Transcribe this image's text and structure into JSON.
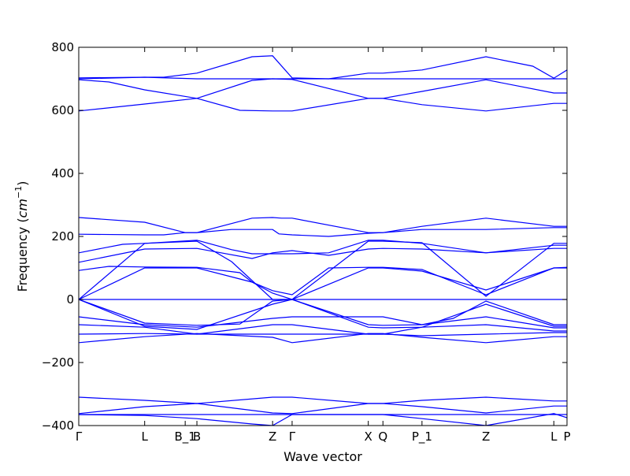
{
  "chart_data": {
    "type": "line",
    "title": "",
    "xlabel": "Wave vector",
    "ylabel": "Frequency",
    "ylabel_unit": "cm",
    "ylabel_unit_exp": "−1",
    "ylim": [
      -400,
      800
    ],
    "yticks": [
      {
        "value": 800,
        "label": "800"
      },
      {
        "value": 600,
        "label": "600"
      },
      {
        "value": 400,
        "label": "400"
      },
      {
        "value": 200,
        "label": "200"
      },
      {
        "value": 0,
        "label": "0"
      },
      {
        "value": -200,
        "label": "−200"
      },
      {
        "value": -400,
        "label": "−400"
      }
    ],
    "xlim": [
      0,
      100
    ],
    "xticks": [
      {
        "value": 0,
        "label": "Γ"
      },
      {
        "value": 13.5,
        "label": "L"
      },
      {
        "value": 21.8,
        "label": "B_1"
      },
      {
        "value": 24.2,
        "label": "B"
      },
      {
        "value": 39.7,
        "label": "Z"
      },
      {
        "value": 43.7,
        "label": "Γ"
      },
      {
        "value": 59.3,
        "label": "X"
      },
      {
        "value": 62.3,
        "label": "Q"
      },
      {
        "value": 70.3,
        "label": "P_1"
      },
      {
        "value": 83.4,
        "label": "Z"
      },
      {
        "value": 97.3,
        "label": "L"
      },
      {
        "value": 100,
        "label": "P"
      }
    ],
    "line_color": "#0000ff",
    "grid": false,
    "legend": "none",
    "series": [
      {
        "x": [
          0,
          13.5,
          17.4,
          24.2,
          35.5,
          39.7,
          43.7,
          51.2,
          59.3,
          62.3,
          70.3,
          83.4,
          93.0,
          97.3,
          100
        ],
        "y": [
          703,
          705,
          705,
          718,
          770,
          773,
          703,
          700,
          718,
          718,
          728,
          770,
          740,
          702,
          728
        ]
      },
      {
        "x": [
          0,
          13.5,
          24.2,
          39.7,
          43.7,
          59.3,
          62.3,
          70.3,
          83.4,
          97.3,
          100
        ],
        "y": [
          700,
          705,
          700,
          700,
          700,
          700,
          700,
          700,
          700,
          700,
          700
        ]
      },
      {
        "x": [
          0,
          6.2,
          13.5,
          24.2,
          35.5,
          39.7,
          43.7,
          59.3,
          62.3,
          70.3,
          83.4,
          97.3,
          100
        ],
        "y": [
          697,
          690,
          665,
          638,
          695,
          700,
          698,
          638,
          638,
          660,
          697,
          655,
          655
        ]
      },
      {
        "x": [
          0,
          13.5,
          24.2,
          33.0,
          39.7,
          43.7,
          59.3,
          62.3,
          70.3,
          83.4,
          97.3,
          100
        ],
        "y": [
          598,
          620,
          638,
          600,
          598,
          598,
          638,
          638,
          618,
          598,
          622,
          622
        ]
      },
      {
        "x": [
          0,
          13.5,
          21.8,
          24.2,
          35.5,
          39.7,
          41.5,
          43.7,
          59.3,
          62.3,
          70.3,
          83.4,
          97.3,
          100
        ],
        "y": [
          260,
          245,
          212,
          212,
          258,
          260,
          258,
          258,
          212,
          212,
          232,
          258,
          232,
          232
        ]
      },
      {
        "x": [
          0,
          13.5,
          17.4,
          21.8,
          24.2,
          31.3,
          39.7,
          41.0,
          43.7,
          51.2,
          59.3,
          62.3,
          70.3,
          83.4,
          97.3,
          100
        ],
        "y": [
          207,
          205,
          205,
          212,
          212,
          222,
          222,
          208,
          205,
          200,
          210,
          212,
          222,
          222,
          228,
          228
        ]
      },
      {
        "x": [
          0,
          9.0,
          13.5,
          24.2,
          31.3,
          35.5,
          39.7,
          43.7,
          51.2,
          59.3,
          62.3,
          70.3,
          83.4,
          97.3,
          100
        ],
        "y": [
          148,
          175,
          178,
          188,
          158,
          145,
          145,
          145,
          148,
          188,
          188,
          178,
          148,
          172,
          172
        ]
      },
      {
        "x": [
          0,
          13.5,
          24.2,
          35.5,
          39.7,
          43.7,
          51.2,
          59.3,
          62.3,
          70.3,
          83.4,
          97.3,
          100
        ],
        "y": [
          118,
          160,
          162,
          130,
          148,
          155,
          140,
          160,
          162,
          160,
          148,
          162,
          162
        ]
      },
      {
        "x": [
          0,
          6.2,
          13.5,
          24.2,
          33.0,
          35.5,
          39.7,
          43.7,
          51.2,
          59.3,
          62.3,
          70.3,
          83.4,
          97.3,
          100
        ],
        "y": [
          92,
          105,
          103,
          102,
          85,
          55,
          28,
          15,
          100,
          102,
          102,
          95,
          15,
          100,
          102
        ]
      },
      {
        "x": [
          0,
          13.5,
          24.2,
          35.5,
          39.7,
          43.7,
          59.3,
          62.3,
          70.3,
          83.4,
          97.3,
          100
        ],
        "y": [
          0,
          100,
          100,
          55,
          20,
          0,
          100,
          100,
          90,
          30,
          100,
          100
        ]
      },
      {
        "x": [
          0,
          13.5,
          24.2,
          31.3,
          39.7,
          43.7,
          59.3,
          62.3,
          70.3,
          83.4,
          97.3,
          100
        ],
        "y": [
          0,
          178,
          185,
          120,
          0,
          0,
          185,
          185,
          180,
          10,
          178,
          178
        ]
      },
      {
        "x": [
          0,
          100
        ],
        "y": [
          0,
          0
        ]
      },
      {
        "x": [
          0,
          13.5,
          24.2,
          33.0,
          39.7,
          43.7,
          59.3,
          62.3,
          70.3,
          76.7,
          83.4,
          97.3,
          100
        ],
        "y": [
          0,
          -75,
          -82,
          -78,
          -5,
          0,
          -80,
          -82,
          -80,
          -60,
          -5,
          -80,
          -80
        ]
      },
      {
        "x": [
          0,
          13.5,
          24.2,
          39.7,
          43.7,
          59.3,
          62.3,
          70.3,
          83.4,
          97.3,
          100
        ],
        "y": [
          0,
          -85,
          -95,
          -15,
          0,
          -88,
          -90,
          -88,
          -15,
          -85,
          -85
        ]
      },
      {
        "x": [
          0,
          13.5,
          24.2,
          39.7,
          43.7,
          59.3,
          62.3,
          70.3,
          83.4,
          97.3,
          100
        ],
        "y": [
          -55,
          -80,
          -88,
          -60,
          -55,
          -55,
          -55,
          -80,
          -55,
          -90,
          -90
        ]
      },
      {
        "x": [
          0,
          13.5,
          24.2,
          39.7,
          43.7,
          59.3,
          62.3,
          70.3,
          83.4,
          97.3,
          100
        ],
        "y": [
          -80,
          -88,
          -110,
          -80,
          -80,
          -110,
          -110,
          -88,
          -80,
          -100,
          -100
        ]
      },
      {
        "x": [
          0,
          13.5,
          24.2,
          39.7,
          43.7,
          59.3,
          62.3,
          70.3,
          83.4,
          97.3,
          100
        ],
        "y": [
          -110,
          -108,
          -110,
          -110,
          -110,
          -110,
          -110,
          -115,
          -110,
          -105,
          -105
        ]
      },
      {
        "x": [
          0,
          13.5,
          24.2,
          39.7,
          43.7,
          59.3,
          62.3,
          70.3,
          83.4,
          97.3,
          100
        ],
        "y": [
          -137,
          -118,
          -108,
          -120,
          -137,
          -108,
          -108,
          -120,
          -137,
          -118,
          -118
        ]
      },
      {
        "x": [
          0,
          13.5,
          24.2,
          39.7,
          43.7,
          59.3,
          62.3,
          70.3,
          83.4,
          97.3,
          100
        ],
        "y": [
          -310,
          -320,
          -330,
          -310,
          -310,
          -330,
          -330,
          -320,
          -310,
          -322,
          -322
        ]
      },
      {
        "x": [
          0,
          13.5,
          24.2,
          39.7,
          43.7,
          59.3,
          62.3,
          70.3,
          83.4,
          97.3,
          100
        ],
        "y": [
          -362,
          -340,
          -330,
          -360,
          -362,
          -330,
          -330,
          -340,
          -360,
          -338,
          -338
        ]
      },
      {
        "x": [
          0,
          13.5,
          24.2,
          39.7,
          43.7,
          59.3,
          62.3,
          70.3,
          83.4,
          97.3,
          100
        ],
        "y": [
          -365,
          -365,
          -365,
          -365,
          -365,
          -365,
          -365,
          -365,
          -365,
          -365,
          -365
        ]
      },
      {
        "x": [
          0,
          13.5,
          24.2,
          35.5,
          39.7,
          43.7,
          59.3,
          62.3,
          70.3,
          83.4,
          97.3,
          100
        ],
        "y": [
          -365,
          -368,
          -378,
          -395,
          -400,
          -365,
          -365,
          -365,
          -378,
          -400,
          -362,
          -375
        ]
      }
    ]
  }
}
